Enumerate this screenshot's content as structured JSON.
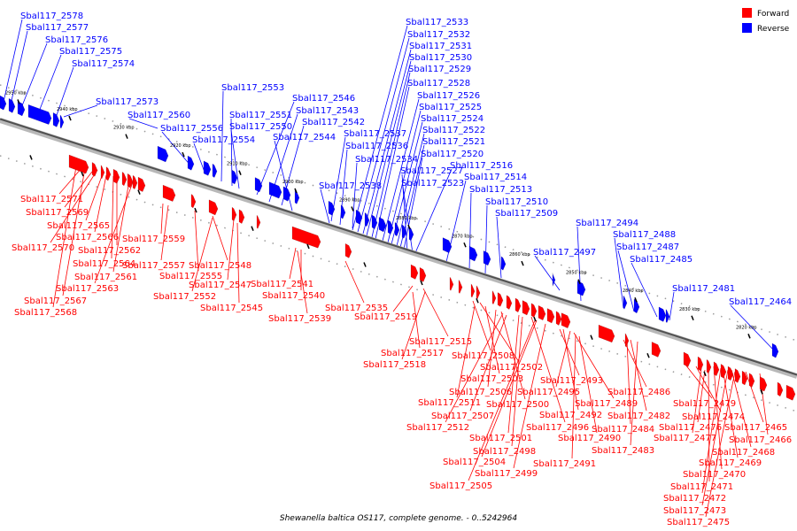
{
  "caption": "Shewanella baltica OS117, complete genome. - 0..5242964",
  "legend": [
    {
      "label": "Forward",
      "color": "#ff0000"
    },
    {
      "label": "Reverse",
      "color": "#0000ff"
    }
  ],
  "colors": {
    "forward": "#ff0000",
    "reverse": "#0000ff",
    "backbone": "#808080"
  },
  "ticks": [
    "2950 kbp",
    "2940 kbp",
    "2930 kbp",
    "2920 kbp",
    "2910 kbp",
    "2900 kbp",
    "2890 kbp",
    "2880 kbp",
    "2870 kbp",
    "2860 kbp",
    "2850 kbp",
    "2840 kbp",
    "2830 kbp",
    "2820 kbp"
  ],
  "reverse_labels": [
    "Sbal117_2578",
    "Sbal117_2577",
    "Sbal117_2576",
    "Sbal117_2575",
    "Sbal117_2574",
    "Sbal117_2573",
    "Sbal117_2560",
    "Sbal117_2556",
    "Sbal117_2554",
    "Sbal117_2553",
    "Sbal117_2551",
    "Sbal117_2550",
    "Sbal117_2546",
    "Sbal117_2543",
    "Sbal117_2542",
    "Sbal117_2544",
    "Sbal117_2537",
    "Sbal117_2536",
    "Sbal117_2534",
    "Sbal117_2538",
    "Sbal117_2533",
    "Sbal117_2532",
    "Sbal117_2531",
    "Sbal117_2530",
    "Sbal117_2529",
    "Sbal117_2528",
    "Sbal117_2526",
    "Sbal117_2525",
    "Sbal117_2524",
    "Sbal117_2522",
    "Sbal117_2521",
    "Sbal117_2520",
    "Sbal117_2527",
    "Sbal117_2523",
    "Sbal117_2516",
    "Sbal117_2514",
    "Sbal117_2513",
    "Sbal117_2510",
    "Sbal117_2509",
    "Sbal117_2497",
    "Sbal117_2494",
    "Sbal117_2488",
    "Sbal117_2487",
    "Sbal117_2485",
    "Sbal117_2481",
    "Sbal117_2464"
  ],
  "forward_labels": [
    "Sbal117_2571",
    "Sbal117_2569",
    "Sbal117_2565",
    "Sbal117_2566",
    "Sbal117_2570",
    "Sbal117_2562",
    "Sbal117_2564",
    "Sbal117_2561",
    "Sbal117_2563",
    "Sbal117_2567",
    "Sbal117_2568",
    "Sbal117_2559",
    "Sbal117_2557",
    "Sbal117_2555",
    "Sbal117_2548",
    "Sbal117_2547",
    "Sbal117_2552",
    "Sbal117_2545",
    "Sbal117_2541",
    "Sbal117_2540",
    "Sbal117_2539",
    "Sbal117_2535",
    "Sbal117_2519",
    "Sbal117_2515",
    "Sbal117_2517",
    "Sbal117_2518",
    "Sbal117_2508",
    "Sbal117_2502",
    "Sbal117_2503",
    "Sbal117_2506",
    "Sbal117_2511",
    "Sbal117_2500",
    "Sbal117_2507",
    "Sbal117_2512",
    "Sbal117_2496",
    "Sbal117_2501",
    "Sbal117_2498",
    "Sbal117_2504",
    "Sbal117_2499",
    "Sbal117_2505",
    "Sbal117_2493",
    "Sbal117_2495",
    "Sbal117_2489",
    "Sbal117_2492",
    "Sbal117_2490",
    "Sbal117_2491",
    "Sbal117_2486",
    "Sbal117_2482",
    "Sbal117_2484",
    "Sbal117_2483",
    "Sbal117_2479",
    "Sbal117_2474",
    "Sbal117_2476",
    "Sbal117_2477",
    "Sbal117_2465",
    "Sbal117_2466",
    "Sbal117_2468",
    "Sbal117_2469",
    "Sbal117_2470",
    "Sbal117_2471",
    "Sbal117_2472",
    "Sbal117_2473",
    "Sbal117_2475"
  ]
}
